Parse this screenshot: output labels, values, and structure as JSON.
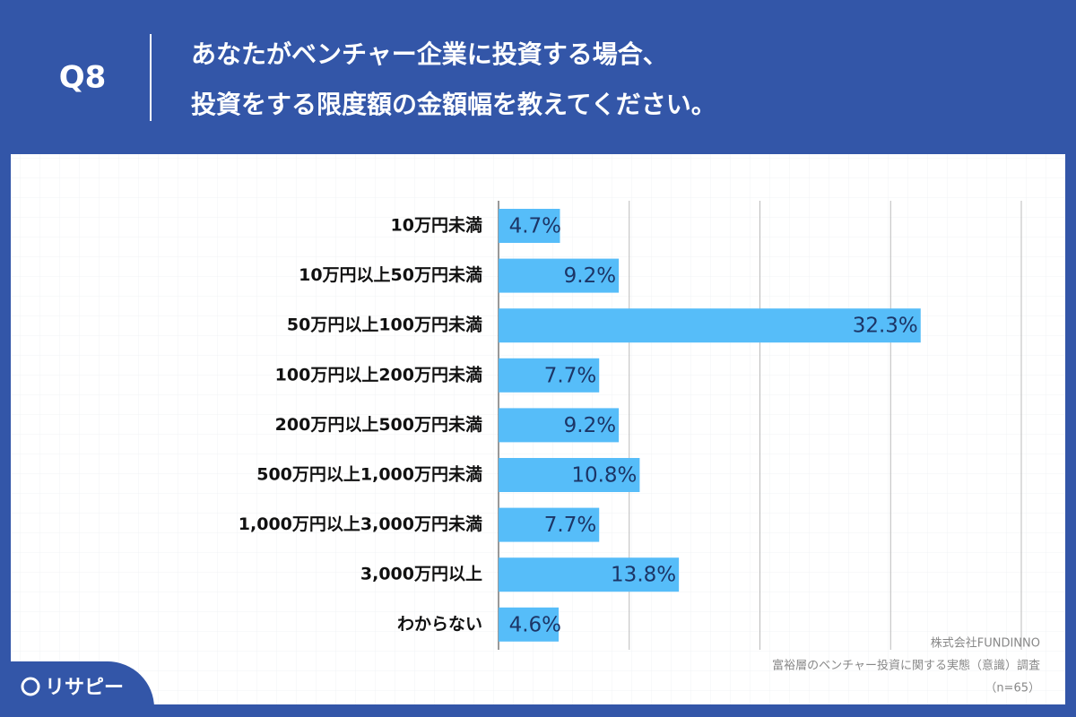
{
  "logo": "リサピー",
  "chart_data": {
    "type": "hbar",
    "question": "Q8",
    "title_lines": [
      "あなたがベンチャー企業に投資する場合、",
      "投資をする限度額の金額幅を教えてください。"
    ],
    "categories": [
      "10万円未満",
      "10万円以上50万円未満",
      "50万円以上100万円未満",
      "100万円以上200万円未満",
      "200万円以上500万円未満",
      "500万円以上1,000万円未満",
      "1,000万円以上3,000万円未満",
      "3,000万円以上",
      "わからない"
    ],
    "values": [
      4.7,
      9.2,
      32.3,
      7.7,
      9.2,
      10.8,
      7.7,
      13.8,
      4.6
    ],
    "value_labels": [
      "4.7%",
      "9.2%",
      "32.3%",
      "7.7%",
      "9.2%",
      "10.8%",
      "7.7%",
      "13.8%",
      "4.6%"
    ],
    "color": "#56bdf9",
    "xlim": [
      0,
      40
    ],
    "xticks": [
      0,
      10,
      20,
      30,
      40
    ],
    "grid": true,
    "source": [
      "株式会社FUNDINNO",
      "富裕層のベンチャー投資に関する実態（意識）調査",
      "（n=65）"
    ]
  }
}
